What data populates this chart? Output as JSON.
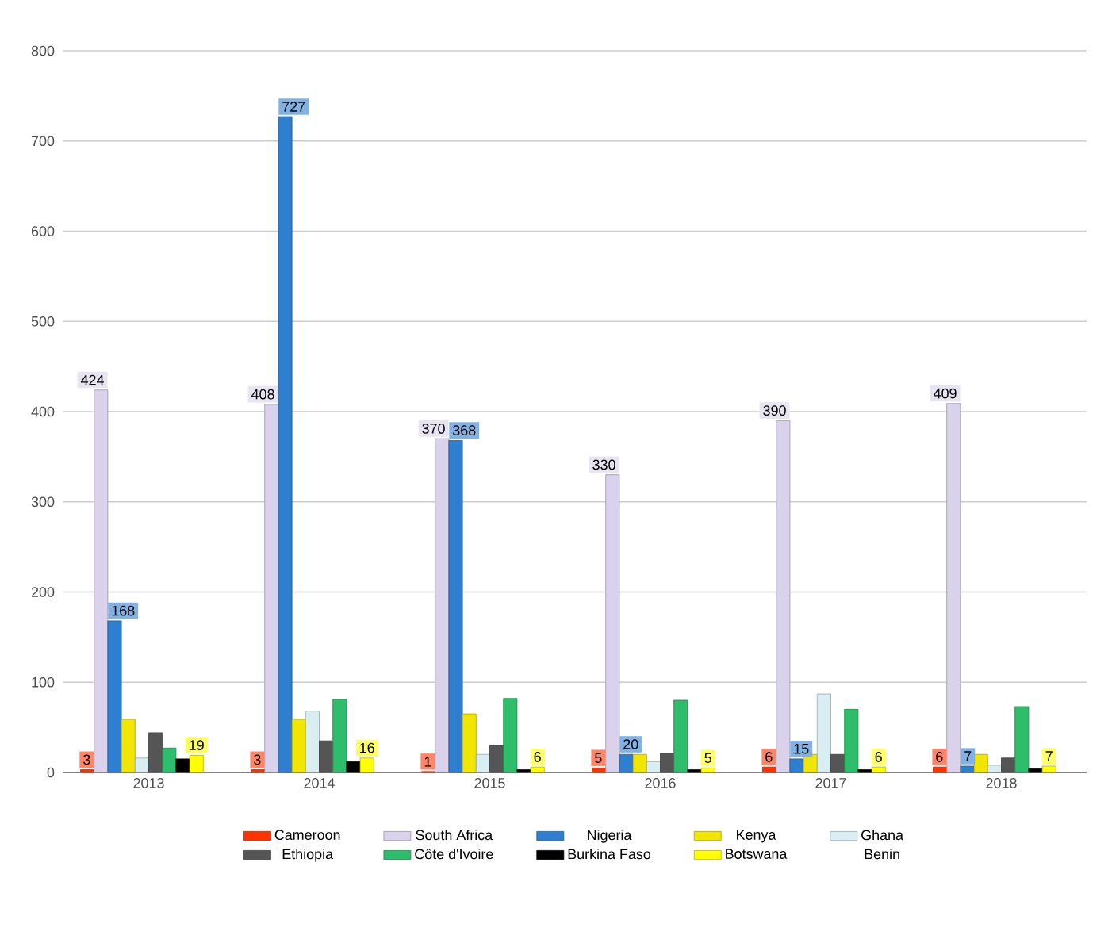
{
  "chart_data": {
    "type": "bar",
    "categories": [
      "2013",
      "2014",
      "2015",
      "2016",
      "2017",
      "2018"
    ],
    "series": [
      {
        "name": "Cameroon",
        "color": "#ff3300",
        "values": [
          3,
          3,
          1,
          5,
          6,
          6
        ],
        "value_labels": [
          "3",
          "3",
          "1",
          "5",
          "6",
          "6"
        ]
      },
      {
        "name": "South Africa",
        "color": "#d9d2ea",
        "values": [
          424,
          408,
          370,
          330,
          390,
          409
        ],
        "value_labels": [
          "424",
          "408",
          "370",
          "330",
          "390",
          "409"
        ]
      },
      {
        "name": "Nigeria",
        "color": "#2e7fd0",
        "values": [
          168,
          727,
          368,
          20,
          15,
          7
        ],
        "value_labels": [
          "168",
          "727",
          "368",
          "20",
          "15",
          "7"
        ]
      },
      {
        "name": "Kenya",
        "color": "#f2e600",
        "values": [
          59,
          59,
          65,
          20,
          20,
          20
        ]
      },
      {
        "name": "Ghana",
        "color": "#d8eef2",
        "values": [
          16,
          68,
          20,
          12,
          87,
          8
        ]
      },
      {
        "name": "Ethiopia",
        "color": "#555555",
        "values": [
          44,
          35,
          30,
          21,
          20,
          16
        ]
      },
      {
        "name": "Côte d'Ivoire",
        "color": "#2ebd6b",
        "values": [
          27,
          81,
          82,
          80,
          70,
          73
        ]
      },
      {
        "name": "Burkina Faso",
        "color": "#000000",
        "values": [
          15,
          12,
          3,
          3,
          3,
          4
        ]
      },
      {
        "name": "Botswana",
        "color": "#ffff00",
        "values": [
          19,
          16,
          6,
          5,
          6,
          7
        ],
        "value_labels": [
          "19",
          "16",
          "6",
          "5",
          "6",
          "7"
        ]
      },
      {
        "name": "Benin",
        "values": [
          null,
          null,
          null,
          null,
          null,
          null
        ]
      }
    ],
    "ylim": [
      0,
      800
    ],
    "yticks": [
      0,
      100,
      200,
      300,
      400,
      500,
      600,
      700,
      800
    ],
    "grid": "y",
    "legend": "bottom"
  }
}
